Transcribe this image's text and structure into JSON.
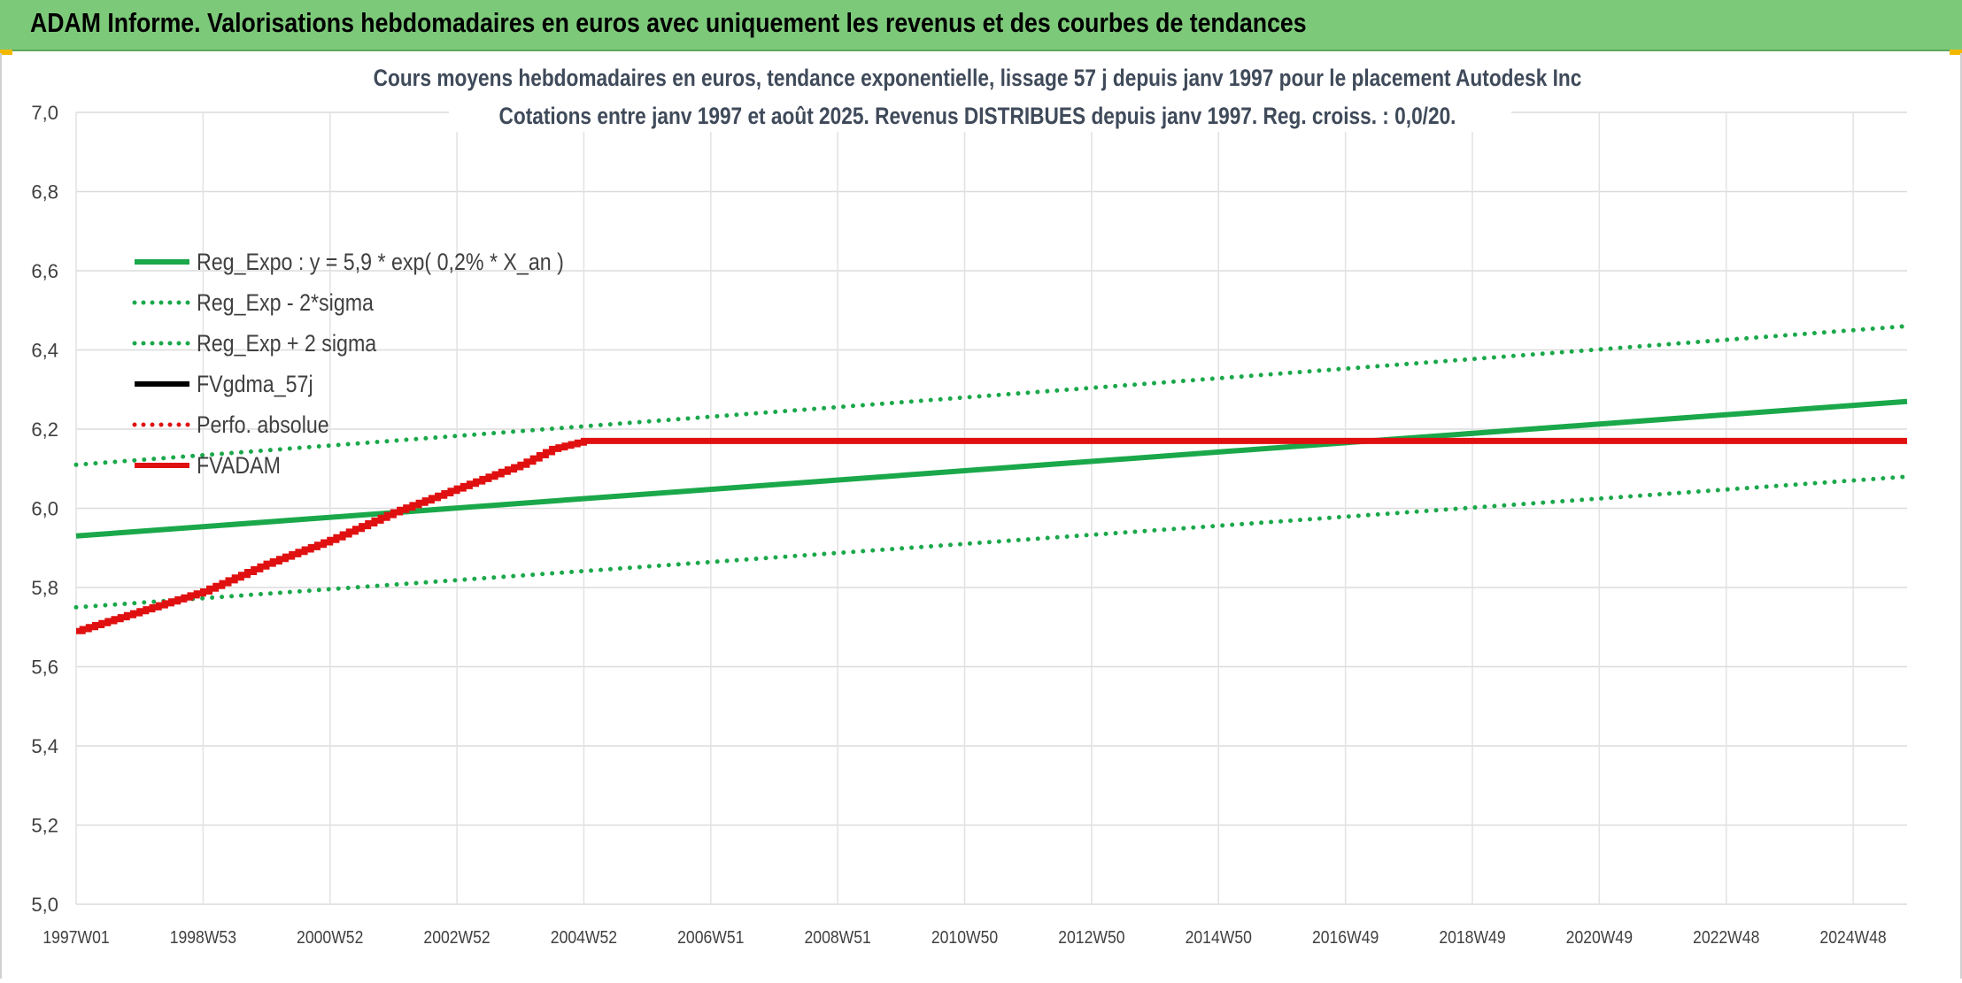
{
  "header": {
    "title": "ADAM Informe. Valorisations hebdomadaires en euros avec uniquement les revenus et des courbes de tendances"
  },
  "chart_data": {
    "type": "line",
    "title": "Cours moyens hebdomadaires en euros, tendance exponentielle, lissage 57 j depuis janv 1997 pour le placement Autodesk Inc",
    "subtitle": "Cotations entre janv 1997 et août 2025. Revenus DISTRIBUES depuis janv 1997. Reg. croiss. : 0,0/20.",
    "xlabel": "",
    "ylabel": "",
    "ylim": [
      5.0,
      7.0
    ],
    "yticks": [
      "5,0",
      "5,2",
      "5,4",
      "5,6",
      "5,8",
      "6,0",
      "6,2",
      "6,4",
      "6,6",
      "6,8",
      "7,0"
    ],
    "xlim": [
      1997.0,
      2025.85
    ],
    "xticks": [
      {
        "label": "1997W01",
        "x": 1997.0
      },
      {
        "label": "1998W53",
        "x": 1999.0
      },
      {
        "label": "2000W52",
        "x": 2001.0
      },
      {
        "label": "2002W52",
        "x": 2003.0
      },
      {
        "label": "2004W52",
        "x": 2005.0
      },
      {
        "label": "2006W51",
        "x": 2007.0
      },
      {
        "label": "2008W51",
        "x": 2009.0
      },
      {
        "label": "2010W50",
        "x": 2011.0
      },
      {
        "label": "2012W50",
        "x": 2013.0
      },
      {
        "label": "2014W50",
        "x": 2015.0
      },
      {
        "label": "2016W49",
        "x": 2017.0
      },
      {
        "label": "2018W49",
        "x": 2019.0
      },
      {
        "label": "2020W49",
        "x": 2021.0
      },
      {
        "label": "2022W48",
        "x": 2023.0
      },
      {
        "label": "2024W48",
        "x": 2025.0
      }
    ],
    "grid": true,
    "legend_position": "top-left",
    "series": [
      {
        "name": "Reg_Expo : y = 5,9 * exp( 0,2% *  X_an )",
        "style": "solid",
        "color": "#1aa84a",
        "x": [
          1997.0,
          2025.85
        ],
        "y": [
          5.93,
          6.27
        ]
      },
      {
        "name": "Reg_Exp - 2*sigma",
        "style": "dotted",
        "color": "#1aa84a",
        "x": [
          1997.0,
          2025.85
        ],
        "y": [
          5.75,
          6.08
        ]
      },
      {
        "name": "Reg_Exp + 2 sigma",
        "style": "dotted",
        "color": "#1aa84a",
        "x": [
          1997.0,
          2025.85
        ],
        "y": [
          6.11,
          6.46
        ]
      },
      {
        "name": "FVgdma_57j",
        "style": "solid",
        "color": "#000000",
        "x": [],
        "y": []
      },
      {
        "name": "Perfo. absolue",
        "style": "dotted",
        "color": "#e01010",
        "x": [],
        "y": []
      },
      {
        "name": "FVADAM",
        "style": "solid",
        "color": "#e01010",
        "x": [
          1997.0,
          1998.0,
          1999.0,
          2000.0,
          2001.0,
          2002.0,
          2003.0,
          2004.0,
          2004.5,
          2005.0,
          2005.5,
          2025.85
        ],
        "y": [
          5.69,
          5.74,
          5.79,
          5.86,
          5.92,
          5.99,
          6.05,
          6.11,
          6.15,
          6.17,
          6.17,
          6.17
        ]
      }
    ]
  }
}
